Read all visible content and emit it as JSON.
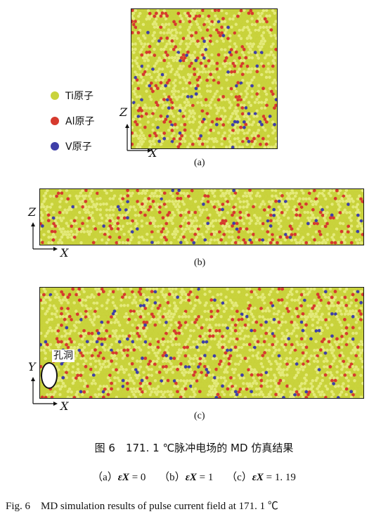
{
  "colors": {
    "ti": "#c9d33c",
    "al": "#d63a2e",
    "v": "#3f3fa8",
    "frame": "#1a1a1a"
  },
  "legend": [
    {
      "label": "Ti原子",
      "color": "#c9d33c"
    },
    {
      "label": "Al原子",
      "color": "#d63a2e"
    },
    {
      "label": "V原子",
      "color": "#3f3fa8"
    }
  ],
  "panels": {
    "a": {
      "label": "(a)",
      "axis_x": "X",
      "axis_y": "Z"
    },
    "b": {
      "label": "(b)",
      "axis_x": "X",
      "axis_y": "Z"
    },
    "c": {
      "label": "(c)",
      "axis_x": "X",
      "axis_y": "Y",
      "annotation": "孔洞"
    }
  },
  "caption": {
    "cn": "图 6　171. 1 ℃脉冲电场的 MD 仿真结果",
    "sub_a_prefix": "（a）",
    "sub_b_prefix": "（b）",
    "sub_c_prefix": "（c）",
    "eps_symbol": "εX",
    "a_value": "= 0",
    "b_value": "= 1",
    "c_value": "= 1. 19",
    "en": "Fig. 6　MD simulation results of pulse current field at 171. 1 ℃"
  }
}
